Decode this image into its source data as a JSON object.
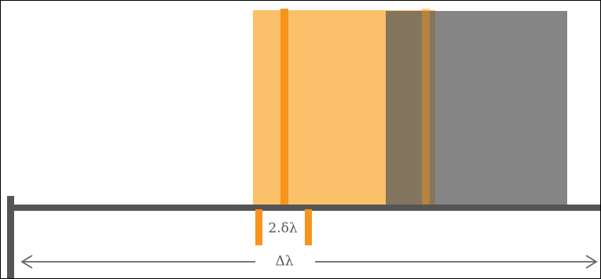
{
  "labels": {
    "spacing": "2.δλ",
    "range": "Δλ"
  },
  "colors": {
    "orange_fill": "#F9A831",
    "orange_line": "#F7941D",
    "gray_fill": "#5a5a5a",
    "axis": "#555555",
    "arrow": "#666666"
  }
}
